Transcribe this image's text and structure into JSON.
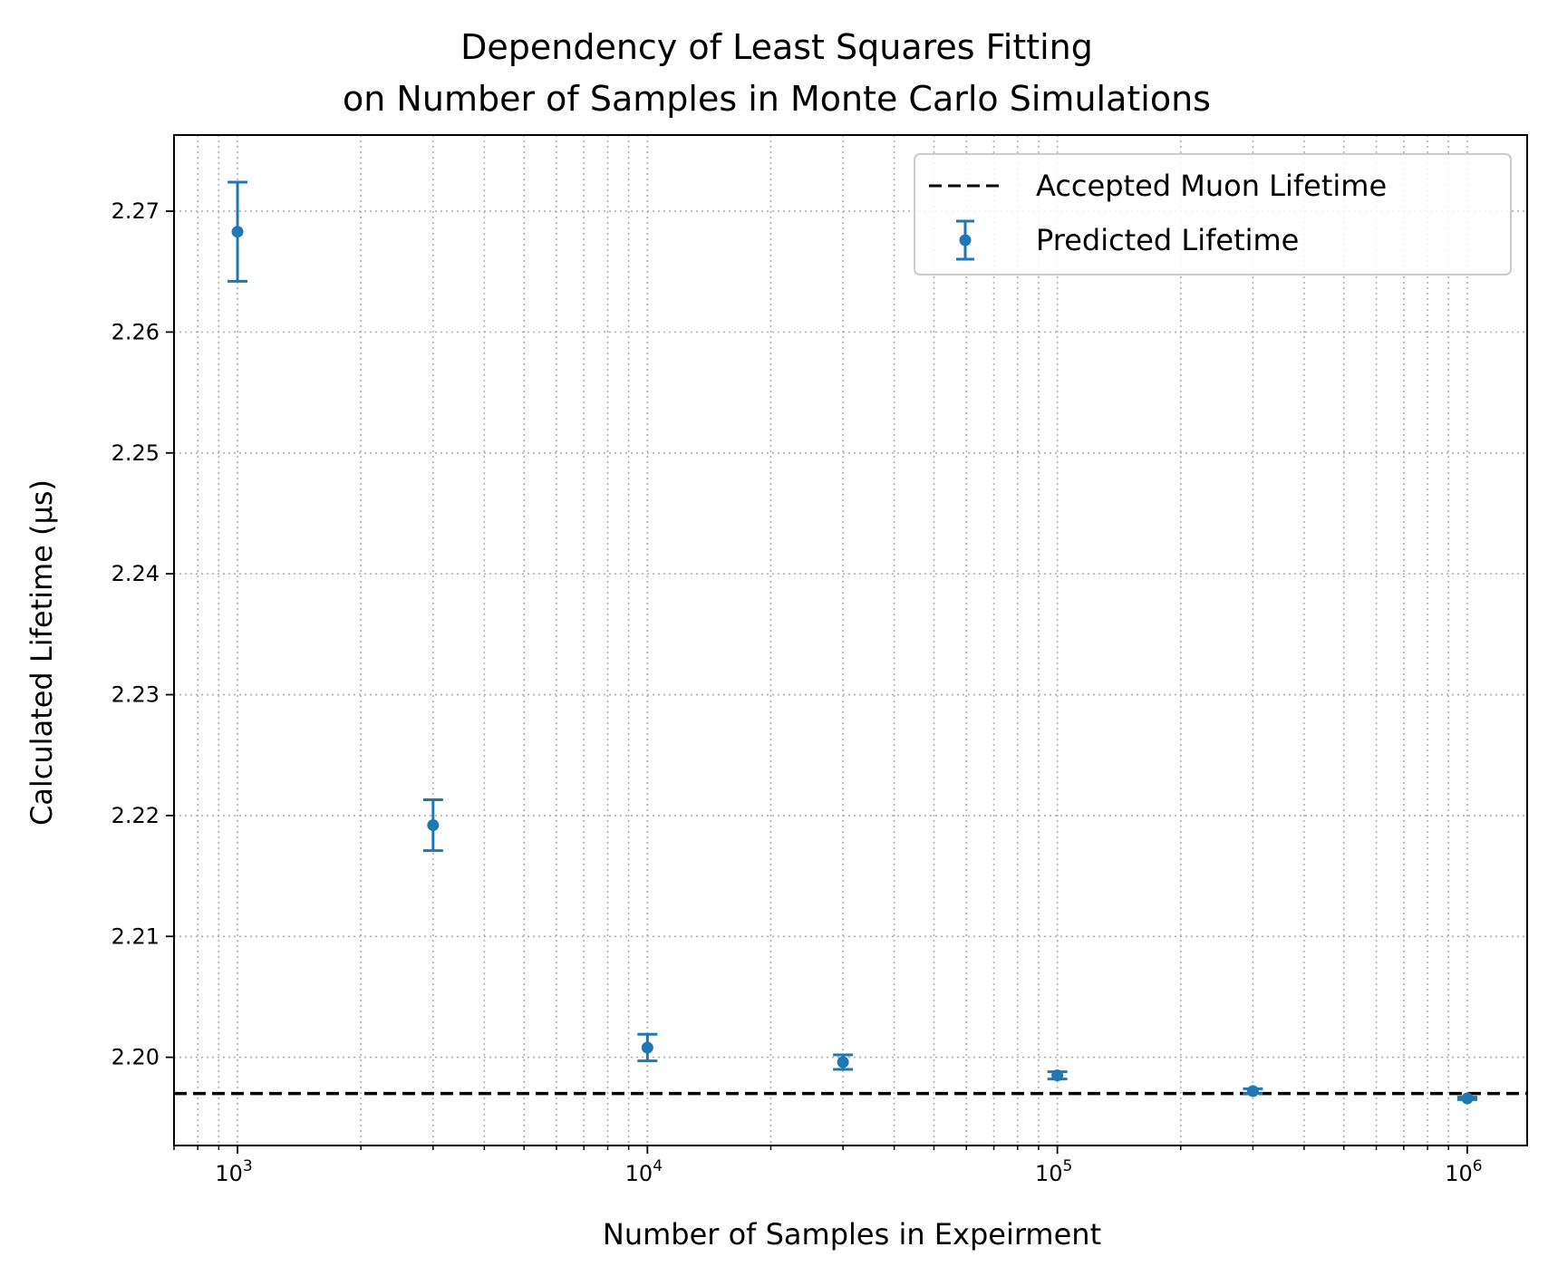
{
  "chart_data": {
    "type": "scatter",
    "title_lines": [
      "Dependency of Least Squares Fitting",
      "on Number of Samples in Monte Carlo Simulations"
    ],
    "xlabel": "Number of Samples in Expeirment",
    "ylabel": "Calculated Lifetime (μs)",
    "x_scale": "log",
    "xlim": [
      700,
      1400000
    ],
    "ylim": [
      2.1927,
      2.2763
    ],
    "x_ticks": [
      {
        "value": 1000,
        "base": "10",
        "exp": "3"
      },
      {
        "value": 10000,
        "base": "10",
        "exp": "4"
      },
      {
        "value": 100000,
        "base": "10",
        "exp": "5"
      },
      {
        "value": 1000000,
        "base": "10",
        "exp": "6"
      }
    ],
    "y_ticks": [
      {
        "value": 2.2,
        "label": "2.20"
      },
      {
        "value": 2.21,
        "label": "2.21"
      },
      {
        "value": 2.22,
        "label": "2.22"
      },
      {
        "value": 2.23,
        "label": "2.23"
      },
      {
        "value": 2.24,
        "label": "2.24"
      },
      {
        "value": 2.25,
        "label": "2.25"
      },
      {
        "value": 2.26,
        "label": "2.26"
      },
      {
        "value": 2.27,
        "label": "2.27"
      }
    ],
    "grid": "major and minor, dotted",
    "legend_position": "upper right",
    "series": [
      {
        "name": "Predicted Lifetime",
        "kind": "errorbar",
        "color": "#1f77b4",
        "x": [
          1000,
          3000,
          10000,
          30000,
          100000,
          300000,
          1000000
        ],
        "y": [
          2.2683,
          2.2192,
          2.2008,
          2.1996,
          2.1985,
          2.1972,
          2.1966
        ],
        "yerr": [
          0.0041,
          0.0021,
          0.0011,
          0.0006,
          0.0003,
          0.0002,
          0.0001
        ]
      }
    ],
    "reference_lines": [
      {
        "name": "Accepted Muon Lifetime",
        "y": 2.197,
        "color": "#000000",
        "style": "dashed"
      }
    ]
  }
}
